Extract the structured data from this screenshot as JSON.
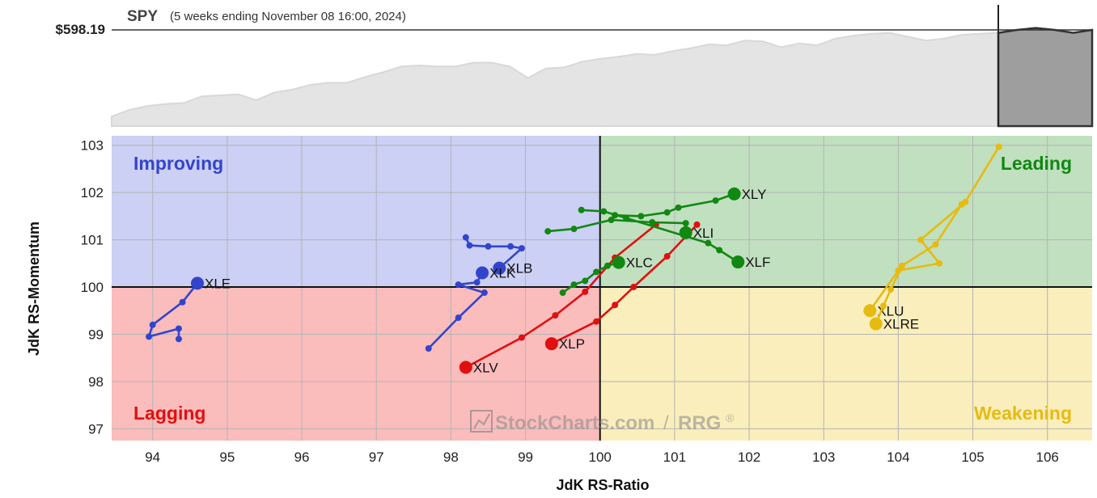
{
  "header": {
    "symbol": "SPY",
    "subtitle": "(5 weeks ending November 08 16:00, 2024)",
    "price_label": "$598.19"
  },
  "colors": {
    "improving_bg": "#cbd0f4",
    "leading_bg": "#c0e0c0",
    "lagging_bg": "#fbbcbc",
    "weakening_bg": "#faeebc",
    "improving_text": "#3344cc",
    "leading_text": "#118811",
    "lagging_text": "#e01010",
    "weakening_text": "#e6bb10",
    "grid": "#b4b4b4",
    "spy_area": "#e4e4e4",
    "spy_line": "#d8d8d8",
    "spy_recent": "#9e9e9e"
  },
  "quadrants": {
    "improving": "Improving",
    "leading": "Leading",
    "lagging": "Lagging",
    "weakening": "Weakening"
  },
  "watermark": {
    "brand": "StockCharts.com",
    "sep": "/",
    "product": "RRG",
    "reg": "®"
  },
  "chart_data": [
    {
      "type": "area",
      "title": "SPY",
      "series": [
        {
          "values": [
            0.1,
            0.17,
            0.21,
            0.23,
            0.24,
            0.31,
            0.32,
            0.33,
            0.27,
            0.35,
            0.38,
            0.43,
            0.45,
            0.45,
            0.51,
            0.56,
            0.62,
            0.63,
            0.62,
            0.62,
            0.66,
            0.66,
            0.62,
            0.5,
            0.6,
            0.61,
            0.67,
            0.7,
            0.72,
            0.75,
            0.74,
            0.78,
            0.81,
            0.85,
            0.84,
            0.89,
            0.88,
            0.82,
            0.86,
            0.84,
            0.91,
            0.94,
            0.96,
            0.97,
            0.93,
            0.89,
            0.91,
            0.95,
            0.96,
            0.97
          ]
        },
        {
          "values": [
            0.97,
            1.0,
            1.02,
            1.0,
            0.97,
            1.0
          ]
        }
      ]
    },
    {
      "type": "scatter",
      "xlabel": "JdK RS-Ratio",
      "ylabel": "JdK RS-Momentum",
      "xlim": [
        93.45,
        106.6
      ],
      "ylim": [
        96.75,
        103.2
      ],
      "xticks": [
        94,
        95,
        96,
        97,
        98,
        99,
        100,
        101,
        102,
        103,
        104,
        105,
        106
      ],
      "yticks": [
        97,
        98,
        99,
        100,
        101,
        102,
        103
      ],
      "grid": true,
      "series": [
        {
          "name": "XLE",
          "color": "#3344cc",
          "points": [
            [
              94.35,
              98.9
            ],
            [
              94.35,
              99.12
            ],
            [
              93.95,
              98.95
            ],
            [
              94.0,
              99.2
            ],
            [
              94.4,
              99.68
            ],
            [
              94.6,
              100.08
            ]
          ]
        },
        {
          "name": "XLB",
          "color": "#3344cc",
          "points": [
            [
              98.2,
              101.05
            ],
            [
              98.25,
              100.88
            ],
            [
              98.5,
              100.86
            ],
            [
              98.8,
              100.86
            ],
            [
              98.95,
              100.82
            ],
            [
              98.65,
              100.4
            ]
          ]
        },
        {
          "name": "XLK",
          "color": "#3344cc",
          "points": [
            [
              97.7,
              98.7
            ],
            [
              98.1,
              99.35
            ],
            [
              98.45,
              99.88
            ],
            [
              98.1,
              100.05
            ],
            [
              98.35,
              100.1
            ],
            [
              98.42,
              100.3
            ]
          ]
        },
        {
          "name": "XLV",
          "color": "#e01010",
          "points": [
            [
              100.75,
              101.32
            ],
            [
              100.2,
              100.62
            ],
            [
              99.8,
              99.9
            ],
            [
              99.4,
              99.4
            ],
            [
              98.95,
              98.93
            ],
            [
              98.2,
              98.3
            ]
          ]
        },
        {
          "name": "XLP",
          "color": "#e01010",
          "points": [
            [
              101.3,
              101.32
            ],
            [
              100.9,
              100.65
            ],
            [
              100.45,
              100.0
            ],
            [
              100.2,
              99.62
            ],
            [
              99.95,
              99.27
            ],
            [
              99.35,
              98.8
            ]
          ]
        },
        {
          "name": "XLC",
          "color": "#118811",
          "points": [
            [
              99.5,
              99.88
            ],
            [
              99.65,
              100.05
            ],
            [
              99.8,
              100.13
            ],
            [
              99.95,
              100.32
            ],
            [
              100.1,
              100.45
            ],
            [
              100.25,
              100.52
            ]
          ]
        },
        {
          "name": "XLI",
          "color": "#118811",
          "points": [
            [
              99.3,
              101.18
            ],
            [
              99.65,
              101.23
            ],
            [
              100.15,
              101.42
            ],
            [
              100.7,
              101.37
            ],
            [
              101.15,
              101.35
            ],
            [
              101.15,
              101.15
            ]
          ]
        },
        {
          "name": "XLF",
          "color": "#118811",
          "points": [
            [
              99.75,
              101.63
            ],
            [
              100.05,
              101.6
            ],
            [
              100.35,
              101.46
            ],
            [
              101.45,
              100.93
            ],
            [
              101.6,
              100.78
            ],
            [
              101.85,
              100.53
            ]
          ]
        },
        {
          "name": "XLY",
          "color": "#118811",
          "points": [
            [
              100.2,
              101.52
            ],
            [
              100.55,
              101.5
            ],
            [
              100.9,
              101.58
            ],
            [
              101.05,
              101.68
            ],
            [
              101.55,
              101.83
            ],
            [
              101.8,
              101.97
            ]
          ]
        },
        {
          "name": "XLU",
          "color": "#e6bb10",
          "points": [
            [
              105.35,
              102.97
            ],
            [
              104.9,
              101.8
            ],
            [
              104.3,
              101.0
            ],
            [
              104.55,
              100.5
            ],
            [
              104.0,
              100.35
            ],
            [
              103.62,
              99.5
            ]
          ]
        },
        {
          "name": "XLRE",
          "color": "#e6bb10",
          "points": [
            [
              104.85,
              101.75
            ],
            [
              104.5,
              100.9
            ],
            [
              104.05,
              100.45
            ],
            [
              103.9,
              99.95
            ],
            [
              103.8,
              99.6
            ],
            [
              103.7,
              99.22
            ]
          ]
        }
      ]
    }
  ]
}
